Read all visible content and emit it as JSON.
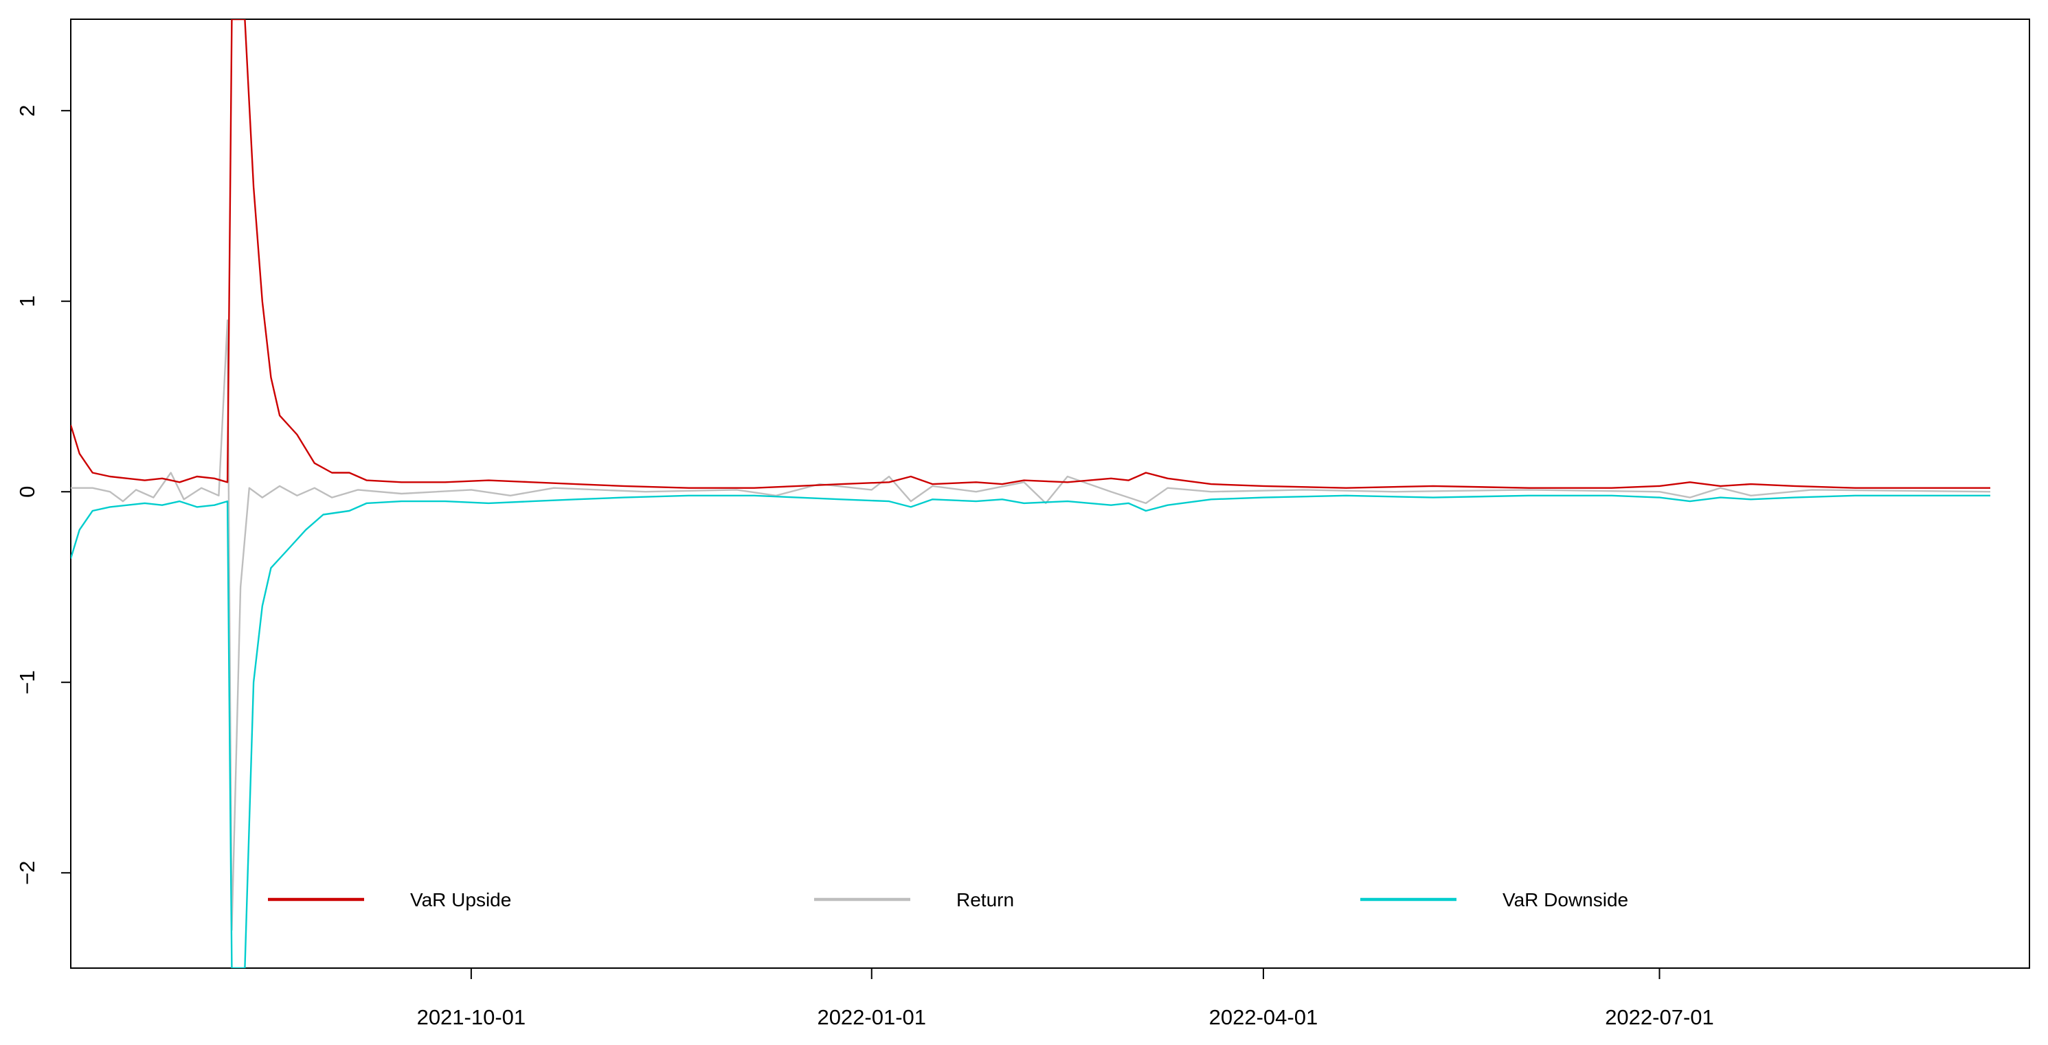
{
  "chart_data": {
    "type": "line",
    "title": "",
    "xlabel": "",
    "ylabel": "",
    "xlim": [
      "2021-07-01",
      "2022-09-24"
    ],
    "ylim": [
      -2.5,
      2.48
    ],
    "x_ticks": [
      "2021-10-01",
      "2022-01-01",
      "2022-04-01",
      "2022-07-01"
    ],
    "y_ticks": [
      -2,
      -1,
      0,
      1,
      2
    ],
    "grid": false,
    "legend_position": "bottom",
    "series": [
      {
        "name": "VaR Upside",
        "color": "#cc0000",
        "points": [
          [
            "2021-07-01",
            0.35
          ],
          [
            "2021-07-03",
            0.2
          ],
          [
            "2021-07-06",
            0.1
          ],
          [
            "2021-07-10",
            0.08
          ],
          [
            "2021-07-14",
            0.07
          ],
          [
            "2021-07-18",
            0.06
          ],
          [
            "2021-07-22",
            0.07
          ],
          [
            "2021-07-26",
            0.05
          ],
          [
            "2021-07-30",
            0.08
          ],
          [
            "2021-08-03",
            0.07
          ],
          [
            "2021-08-06",
            0.05
          ],
          [
            "2021-08-07",
            2.48
          ],
          [
            "2021-08-10",
            2.48
          ],
          [
            "2021-08-12",
            1.6
          ],
          [
            "2021-08-14",
            1.0
          ],
          [
            "2021-08-16",
            0.6
          ],
          [
            "2021-08-18",
            0.4
          ],
          [
            "2021-08-22",
            0.3
          ],
          [
            "2021-08-26",
            0.15
          ],
          [
            "2021-08-30",
            0.1
          ],
          [
            "2021-09-03",
            0.1
          ],
          [
            "2021-09-07",
            0.06
          ],
          [
            "2021-09-15",
            0.05
          ],
          [
            "2021-09-25",
            0.05
          ],
          [
            "2021-10-05",
            0.06
          ],
          [
            "2021-10-15",
            0.05
          ],
          [
            "2021-10-25",
            0.04
          ],
          [
            "2021-11-05",
            0.03
          ],
          [
            "2021-11-20",
            0.02
          ],
          [
            "2021-12-05",
            0.02
          ],
          [
            "2021-12-15",
            0.03
          ],
          [
            "2021-12-25",
            0.04
          ],
          [
            "2022-01-05",
            0.05
          ],
          [
            "2022-01-10",
            0.08
          ],
          [
            "2022-01-15",
            0.04
          ],
          [
            "2022-01-25",
            0.05
          ],
          [
            "2022-01-31",
            0.04
          ],
          [
            "2022-02-05",
            0.06
          ],
          [
            "2022-02-15",
            0.05
          ],
          [
            "2022-02-25",
            0.07
          ],
          [
            "2022-03-01",
            0.06
          ],
          [
            "2022-03-05",
            0.1
          ],
          [
            "2022-03-10",
            0.07
          ],
          [
            "2022-03-20",
            0.04
          ],
          [
            "2022-04-01",
            0.03
          ],
          [
            "2022-04-20",
            0.02
          ],
          [
            "2022-05-10",
            0.03
          ],
          [
            "2022-06-01",
            0.02
          ],
          [
            "2022-06-20",
            0.02
          ],
          [
            "2022-07-01",
            0.03
          ],
          [
            "2022-07-08",
            0.05
          ],
          [
            "2022-07-15",
            0.03
          ],
          [
            "2022-07-22",
            0.04
          ],
          [
            "2022-08-01",
            0.03
          ],
          [
            "2022-08-15",
            0.02
          ],
          [
            "2022-09-01",
            0.02
          ],
          [
            "2022-09-15",
            0.02
          ]
        ]
      },
      {
        "name": "Return",
        "color": "#bebebe",
        "points": [
          [
            "2021-07-01",
            0.02
          ],
          [
            "2021-07-06",
            0.02
          ],
          [
            "2021-07-10",
            0.0
          ],
          [
            "2021-07-13",
            -0.05
          ],
          [
            "2021-07-16",
            0.01
          ],
          [
            "2021-07-20",
            -0.03
          ],
          [
            "2021-07-24",
            0.1
          ],
          [
            "2021-07-27",
            -0.04
          ],
          [
            "2021-07-31",
            0.02
          ],
          [
            "2021-08-04",
            -0.02
          ],
          [
            "2021-08-06",
            0.9
          ],
          [
            "2021-08-07",
            -2.3
          ],
          [
            "2021-08-09",
            -0.5
          ],
          [
            "2021-08-11",
            0.02
          ],
          [
            "2021-08-14",
            -0.03
          ],
          [
            "2021-08-18",
            0.03
          ],
          [
            "2021-08-22",
            -0.02
          ],
          [
            "2021-08-26",
            0.02
          ],
          [
            "2021-08-30",
            -0.03
          ],
          [
            "2021-09-05",
            0.01
          ],
          [
            "2021-09-15",
            -0.01
          ],
          [
            "2021-10-01",
            0.01
          ],
          [
            "2021-10-10",
            -0.02
          ],
          [
            "2021-10-20",
            0.02
          ],
          [
            "2021-11-10",
            0.0
          ],
          [
            "2021-12-01",
            0.01
          ],
          [
            "2021-12-10",
            -0.02
          ],
          [
            "2021-12-20",
            0.04
          ],
          [
            "2022-01-01",
            0.01
          ],
          [
            "2022-01-05",
            0.08
          ],
          [
            "2022-01-10",
            -0.05
          ],
          [
            "2022-01-15",
            0.03
          ],
          [
            "2022-01-25",
            0.0
          ],
          [
            "2022-02-05",
            0.05
          ],
          [
            "2022-02-10",
            -0.06
          ],
          [
            "2022-02-15",
            0.08
          ],
          [
            "2022-02-25",
            0.0
          ],
          [
            "2022-03-05",
            -0.06
          ],
          [
            "2022-03-10",
            0.02
          ],
          [
            "2022-03-20",
            0.0
          ],
          [
            "2022-04-10",
            0.01
          ],
          [
            "2022-05-01",
            0.0
          ],
          [
            "2022-06-01",
            0.01
          ],
          [
            "2022-07-01",
            0.0
          ],
          [
            "2022-07-08",
            -0.03
          ],
          [
            "2022-07-15",
            0.02
          ],
          [
            "2022-07-22",
            -0.02
          ],
          [
            "2022-08-05",
            0.01
          ],
          [
            "2022-09-15",
            0.0
          ]
        ]
      },
      {
        "name": "VaR Downside",
        "color": "#00cdcd",
        "points": [
          [
            "2021-07-01",
            -0.35
          ],
          [
            "2021-07-03",
            -0.2
          ],
          [
            "2021-07-06",
            -0.1
          ],
          [
            "2021-07-10",
            -0.08
          ],
          [
            "2021-07-14",
            -0.07
          ],
          [
            "2021-07-18",
            -0.06
          ],
          [
            "2021-07-22",
            -0.07
          ],
          [
            "2021-07-26",
            -0.05
          ],
          [
            "2021-07-30",
            -0.08
          ],
          [
            "2021-08-03",
            -0.07
          ],
          [
            "2021-08-06",
            -0.05
          ],
          [
            "2021-08-07",
            -2.5
          ],
          [
            "2021-08-10",
            -2.5
          ],
          [
            "2021-08-12",
            -1.0
          ],
          [
            "2021-08-14",
            -0.6
          ],
          [
            "2021-08-16",
            -0.4
          ],
          [
            "2021-08-20",
            -0.3
          ],
          [
            "2021-08-24",
            -0.2
          ],
          [
            "2021-08-28",
            -0.12
          ],
          [
            "2021-09-03",
            -0.1
          ],
          [
            "2021-09-07",
            -0.06
          ],
          [
            "2021-09-15",
            -0.05
          ],
          [
            "2021-09-25",
            -0.05
          ],
          [
            "2021-10-05",
            -0.06
          ],
          [
            "2021-10-15",
            -0.05
          ],
          [
            "2021-10-25",
            -0.04
          ],
          [
            "2021-11-05",
            -0.03
          ],
          [
            "2021-11-20",
            -0.02
          ],
          [
            "2021-12-05",
            -0.02
          ],
          [
            "2021-12-15",
            -0.03
          ],
          [
            "2021-12-25",
            -0.04
          ],
          [
            "2022-01-05",
            -0.05
          ],
          [
            "2022-01-10",
            -0.08
          ],
          [
            "2022-01-15",
            -0.04
          ],
          [
            "2022-01-25",
            -0.05
          ],
          [
            "2022-01-31",
            -0.04
          ],
          [
            "2022-02-05",
            -0.06
          ],
          [
            "2022-02-15",
            -0.05
          ],
          [
            "2022-02-25",
            -0.07
          ],
          [
            "2022-03-01",
            -0.06
          ],
          [
            "2022-03-05",
            -0.1
          ],
          [
            "2022-03-10",
            -0.07
          ],
          [
            "2022-03-20",
            -0.04
          ],
          [
            "2022-04-01",
            -0.03
          ],
          [
            "2022-04-20",
            -0.02
          ],
          [
            "2022-05-10",
            -0.03
          ],
          [
            "2022-06-01",
            -0.02
          ],
          [
            "2022-06-20",
            -0.02
          ],
          [
            "2022-07-01",
            -0.03
          ],
          [
            "2022-07-08",
            -0.05
          ],
          [
            "2022-07-15",
            -0.03
          ],
          [
            "2022-07-22",
            -0.04
          ],
          [
            "2022-08-01",
            -0.03
          ],
          [
            "2022-08-15",
            -0.02
          ],
          [
            "2022-09-01",
            -0.02
          ],
          [
            "2022-09-15",
            -0.02
          ]
        ]
      }
    ]
  }
}
